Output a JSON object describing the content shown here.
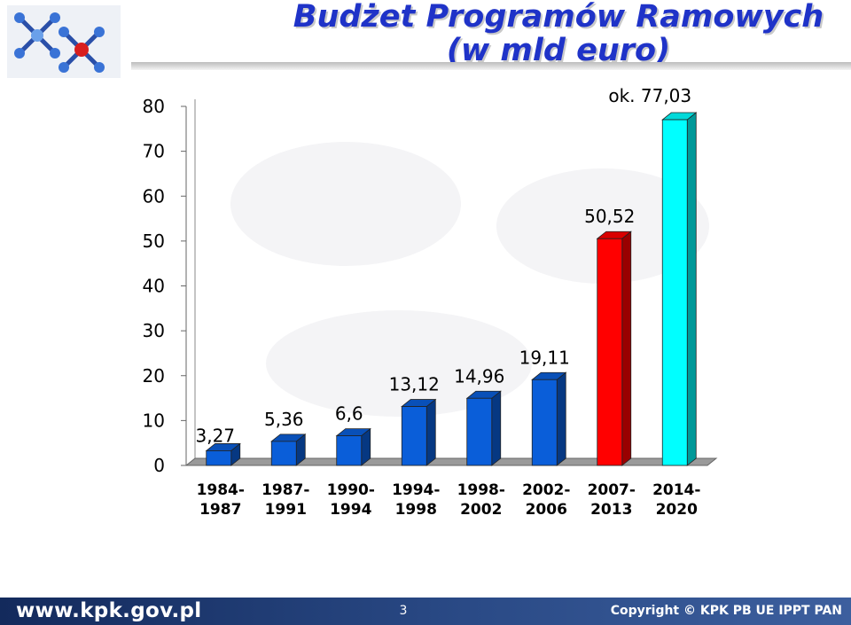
{
  "title": {
    "line1": "Budżet Programów Ramowych",
    "line2": "(w mld euro)"
  },
  "footer": {
    "url": "www.kpk.gov.pl",
    "page_number": "3",
    "copyright": "Copyright © KPK PB UE IPPT PAN"
  },
  "colors": {
    "title": "#1f33c8",
    "bar_default": "#0a5ed9",
    "bar_red": "#ff0000",
    "bar_cyan": "#00ffff",
    "footer_bg": "#1c3770"
  },
  "chart_data": {
    "type": "bar",
    "categories": [
      "1984-\n1987",
      "1987-\n1991",
      "1990-\n1994",
      "1994-\n1998",
      "1998-\n2002",
      "2002-\n2006",
      "2007-\n2013",
      "2014-\n2020"
    ],
    "values": [
      3.27,
      5.36,
      6.6,
      13.12,
      14.96,
      19.11,
      50.52,
      77.03
    ],
    "data_labels": [
      "3,27",
      "5,36",
      "6,6",
      "13,12",
      "14,96",
      "19,11",
      "50,52",
      "ok. 77,03"
    ],
    "bar_colors": [
      "#0a5ed9",
      "#0a5ed9",
      "#0a5ed9",
      "#0a5ed9",
      "#0a5ed9",
      "#0a5ed9",
      "#ff0000",
      "#00ffff"
    ],
    "y_ticks": [
      "0",
      "10",
      "20",
      "30",
      "40",
      "50",
      "60",
      "70",
      "80"
    ],
    "ylim": [
      0,
      80
    ],
    "grid": false,
    "legend": "none",
    "style": "3d-columns"
  }
}
